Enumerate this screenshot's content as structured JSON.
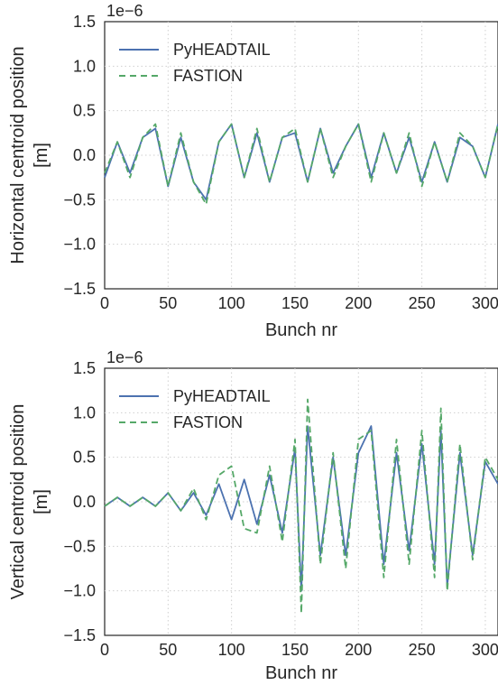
{
  "colors": {
    "pyheadtail": "#4c72b0",
    "fastion": "#55a868",
    "grid": "#cfcfcf",
    "axes": "#262626"
  },
  "chart_data": [
    {
      "type": "line",
      "ylabel_line1": "Horizontal centroid position",
      "ylabel_line2": "[m]",
      "xlabel": "Bunch nr",
      "y_multiplier": "1e−6",
      "xlim": [
        0,
        310
      ],
      "ylim": [
        -1.5,
        1.5
      ],
      "xticks": [
        0,
        50,
        100,
        150,
        200,
        250,
        300
      ],
      "xtick_labels": [
        "0",
        "50",
        "100",
        "150",
        "200",
        "250",
        "300"
      ],
      "yticks": [
        -1.5,
        -1.0,
        -0.5,
        0.0,
        0.5,
        1.0,
        1.5
      ],
      "ytick_labels": [
        "−1.5",
        "−1.0",
        "−0.5",
        "0.0",
        "0.5",
        "1.0",
        "1.5"
      ],
      "grid": true,
      "legend_position": "top-left",
      "series": [
        {
          "name": "PyHEADTAIL",
          "style": "solid",
          "x": [
            0,
            10,
            20,
            30,
            40,
            50,
            60,
            70,
            80,
            90,
            100,
            110,
            120,
            130,
            140,
            150,
            160,
            170,
            180,
            190,
            200,
            210,
            220,
            230,
            240,
            250,
            260,
            270,
            280,
            290,
            300,
            310
          ],
          "y": [
            -0.25,
            0.15,
            -0.2,
            0.2,
            0.3,
            -0.35,
            0.2,
            -0.3,
            -0.5,
            0.15,
            0.35,
            -0.25,
            0.25,
            -0.3,
            0.2,
            0.25,
            -0.3,
            0.3,
            -0.2,
            0.1,
            0.35,
            -0.25,
            0.25,
            -0.2,
            0.2,
            -0.3,
            0.15,
            -0.3,
            0.2,
            0.1,
            -0.25,
            0.35
          ]
        },
        {
          "name": "FASTION",
          "style": "dashed",
          "x": [
            0,
            10,
            20,
            30,
            40,
            50,
            60,
            70,
            80,
            90,
            100,
            110,
            120,
            130,
            140,
            150,
            160,
            170,
            180,
            190,
            200,
            210,
            220,
            230,
            240,
            250,
            260,
            270,
            280,
            290,
            300,
            310
          ],
          "y": [
            -0.2,
            0.15,
            -0.25,
            0.2,
            0.35,
            -0.35,
            0.25,
            -0.3,
            -0.55,
            0.15,
            0.35,
            -0.25,
            0.3,
            -0.3,
            0.2,
            0.3,
            -0.3,
            0.3,
            -0.25,
            0.1,
            0.35,
            -0.3,
            0.25,
            -0.2,
            0.25,
            -0.35,
            0.15,
            -0.3,
            0.25,
            0.1,
            -0.25,
            0.35
          ]
        }
      ]
    },
    {
      "type": "line",
      "ylabel_line1": "Vertical centroid position",
      "ylabel_line2": "[m]",
      "xlabel": "Bunch nr",
      "y_multiplier": "1e−6",
      "xlim": [
        0,
        310
      ],
      "ylim": [
        -1.5,
        1.5
      ],
      "xticks": [
        0,
        50,
        100,
        150,
        200,
        250,
        300
      ],
      "xtick_labels": [
        "0",
        "50",
        "100",
        "150",
        "200",
        "250",
        "300"
      ],
      "yticks": [
        -1.5,
        -1.0,
        -0.5,
        0.0,
        0.5,
        1.0,
        1.5
      ],
      "ytick_labels": [
        "−1.5",
        "−1.0",
        "−0.5",
        "0.0",
        "0.5",
        "1.0",
        "1.5"
      ],
      "grid": true,
      "legend_position": "top-left",
      "series": [
        {
          "name": "PyHEADTAIL",
          "style": "solid",
          "x": [
            0,
            10,
            20,
            30,
            40,
            50,
            60,
            70,
            80,
            90,
            100,
            110,
            120,
            130,
            140,
            150,
            155,
            160,
            170,
            180,
            190,
            200,
            210,
            220,
            230,
            240,
            250,
            260,
            265,
            270,
            280,
            290,
            300,
            310
          ],
          "y": [
            -0.05,
            0.05,
            -0.05,
            0.05,
            -0.05,
            0.1,
            -0.1,
            0.1,
            -0.15,
            0.2,
            -0.2,
            0.25,
            -0.25,
            0.3,
            -0.35,
            0.6,
            -1.0,
            0.85,
            -0.6,
            0.5,
            -0.6,
            0.55,
            0.85,
            -0.7,
            0.55,
            -0.55,
            0.65,
            -0.7,
            0.8,
            -0.95,
            0.55,
            -0.6,
            0.45,
            0.2
          ]
        },
        {
          "name": "FASTION",
          "style": "dashed",
          "x": [
            0,
            10,
            20,
            30,
            40,
            50,
            60,
            70,
            80,
            90,
            100,
            110,
            120,
            130,
            140,
            150,
            155,
            160,
            170,
            180,
            190,
            200,
            210,
            220,
            230,
            240,
            250,
            260,
            265,
            270,
            280,
            290,
            300,
            310
          ],
          "y": [
            -0.05,
            0.05,
            -0.05,
            0.05,
            -0.05,
            0.1,
            -0.1,
            0.15,
            -0.2,
            0.3,
            0.4,
            -0.3,
            -0.35,
            0.4,
            -0.45,
            0.7,
            -1.25,
            1.15,
            -0.7,
            0.55,
            -0.75,
            0.7,
            0.8,
            -0.85,
            0.7,
            -0.7,
            0.8,
            -0.85,
            1.05,
            -1.0,
            0.65,
            -0.65,
            0.5,
            0.25
          ]
        }
      ]
    }
  ]
}
